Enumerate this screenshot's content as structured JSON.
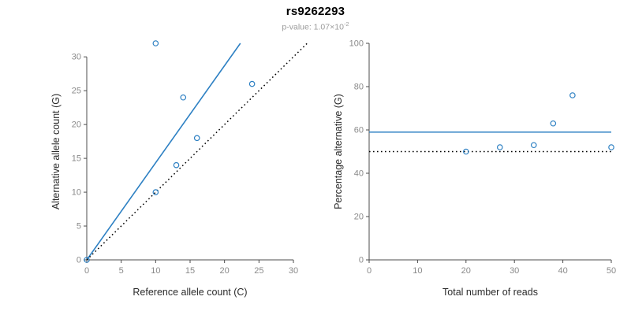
{
  "header": {
    "title": "rs9262293",
    "p_value": {
      "label": "p-value:",
      "mantissa": "1.07",
      "times": "×",
      "base": "10",
      "exponent": "-2"
    }
  },
  "colors": {
    "accent_blue": "#2d80c3",
    "dotted_black": "#000000",
    "axis": "#4d4d4d",
    "tick_text": "#8a8a8a",
    "label_text": "#2b2b2b"
  },
  "chart_data": [
    {
      "type": "scatter",
      "panel": "left",
      "title": "",
      "xlabel": "Reference allele count (C)",
      "ylabel": "Alternative allele count (G)",
      "xlim": [
        0,
        30
      ],
      "ylim": [
        0,
        32
      ],
      "xticks": [
        0,
        5,
        10,
        15,
        20,
        25,
        30
      ],
      "yticks": [
        0,
        5,
        10,
        15,
        20,
        25,
        30
      ],
      "grid": false,
      "legend": "none",
      "point_color": "#2d80c3",
      "points": [
        [
          0,
          0
        ],
        [
          10,
          10
        ],
        [
          13,
          14
        ],
        [
          16,
          18
        ],
        [
          14,
          24
        ],
        [
          24,
          26
        ],
        [
          10,
          32
        ]
      ],
      "lines": [
        {
          "name": "allelic-ratio-line",
          "style": "solid",
          "color": "#2d80c3",
          "x": [
            0,
            22.3
          ],
          "y": [
            0,
            32
          ]
        },
        {
          "name": "identity-line",
          "style": "dotted",
          "color": "#000000",
          "x": [
            0,
            32
          ],
          "y": [
            0,
            32
          ]
        }
      ]
    },
    {
      "type": "scatter",
      "panel": "right",
      "title": "",
      "xlabel": "Total number of reads",
      "ylabel": "Percentage alternative (G)",
      "xlim": [
        0,
        50
      ],
      "ylim": [
        0,
        100
      ],
      "xticks": [
        0,
        10,
        20,
        30,
        40,
        50
      ],
      "yticks": [
        0,
        20,
        40,
        60,
        80,
        100
      ],
      "grid": false,
      "legend": "none",
      "point_color": "#2d80c3",
      "points": [
        [
          20,
          50
        ],
        [
          27,
          52
        ],
        [
          34,
          53
        ],
        [
          38,
          63
        ],
        [
          42,
          76
        ],
        [
          50,
          52
        ]
      ],
      "lines": [
        {
          "name": "mean-percentage-line",
          "style": "solid",
          "color": "#2d80c3",
          "x": [
            0,
            50
          ],
          "y": [
            59,
            59
          ]
        },
        {
          "name": "expected-50-percent-line",
          "style": "dotted",
          "color": "#000000",
          "x": [
            0,
            50
          ],
          "y": [
            50,
            50
          ]
        }
      ]
    }
  ]
}
